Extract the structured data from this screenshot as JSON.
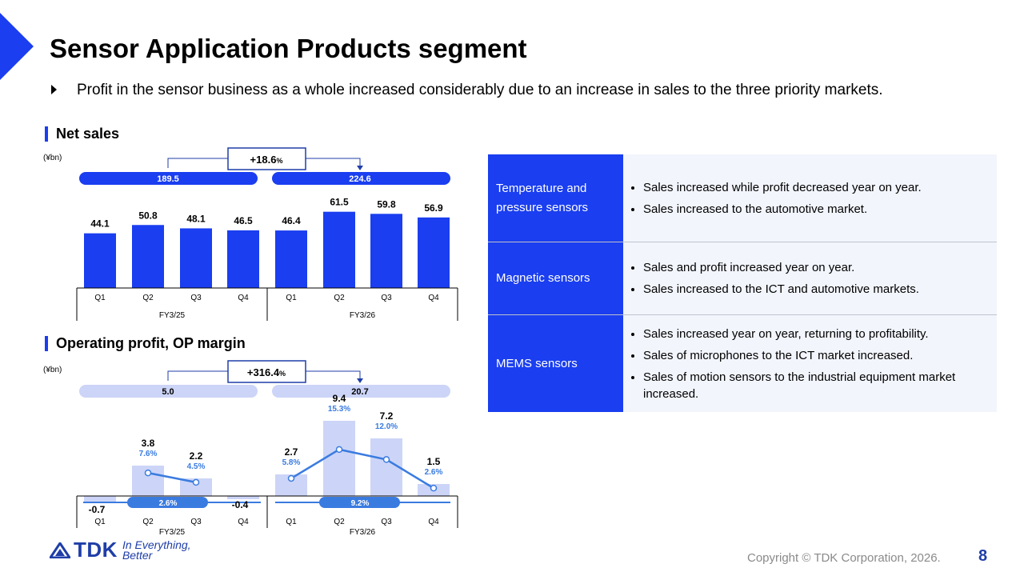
{
  "header": {
    "title": "Sensor Application Products segment",
    "summary": "Profit in the sensor business as a whole increased considerably due to an increase in sales to the three priority markets."
  },
  "net_sales": {
    "heading": "Net sales",
    "unit": "(¥bn)",
    "growth_value": "+18.6",
    "growth_unit": "%",
    "fy25_total": "189.5",
    "fy26_total": "224.6"
  },
  "op_profit": {
    "heading": "Operating profit, OP margin",
    "unit": "(¥bn)",
    "growth_value": "+316.4",
    "growth_unit": "%",
    "fy25_total": "5.0",
    "fy26_total": "20.7",
    "fy25_avg_margin": "2.6%",
    "fy26_avg_margin": "9.2%"
  },
  "chart_data": [
    {
      "type": "bar",
      "title": "Net sales",
      "unit": "(¥bn)",
      "categories": [
        "Q1",
        "Q2",
        "Q3",
        "Q4",
        "Q1",
        "Q2",
        "Q3",
        "Q4"
      ],
      "groups": [
        "FY3/25",
        "FY3/26"
      ],
      "values": [
        44.1,
        50.8,
        48.1,
        46.5,
        46.4,
        61.5,
        59.8,
        56.9
      ],
      "labels": [
        "44.1",
        "50.8",
        "48.1",
        "46.5",
        "46.4",
        "61.5",
        "59.8",
        "56.9"
      ],
      "ylim": [
        0,
        70
      ],
      "colors": {
        "bar": "#1a3ef0",
        "total": "#1a3ef0"
      }
    },
    {
      "type": "bar",
      "title": "Operating profit, OP margin",
      "unit": "(¥bn)",
      "categories": [
        "Q1",
        "Q2",
        "Q3",
        "Q4",
        "Q1",
        "Q2",
        "Q3",
        "Q4"
      ],
      "groups": [
        "FY3/25",
        "FY3/26"
      ],
      "values": [
        -0.7,
        3.8,
        2.2,
        -0.4,
        2.7,
        9.4,
        7.2,
        1.5
      ],
      "labels": [
        "-0.7",
        "3.8",
        "2.2",
        "-0.4",
        "2.7",
        "9.4",
        "7.2",
        "1.5"
      ],
      "margin_series": {
        "values": [
          null,
          7.6,
          4.5,
          null,
          5.8,
          15.3,
          12.0,
          2.6
        ],
        "labels": [
          "",
          "7.6%",
          "4.5%",
          "",
          "5.8%",
          "15.3%",
          "12.0%",
          "2.6%"
        ]
      },
      "ylim": [
        -1,
        10
      ],
      "colors": {
        "bar": "#ccd5f7",
        "line": "#3a7be0",
        "total": "#ccd5f7"
      }
    }
  ],
  "table": [
    {
      "category": "Temperature and pressure sensors",
      "points": [
        "Sales increased while profit decreased year on year.",
        "Sales increased to the automotive market."
      ]
    },
    {
      "category": "Magnetic sensors",
      "points": [
        "Sales and profit increased year on year.",
        "Sales increased to the ICT and automotive markets."
      ]
    },
    {
      "category": "MEMS sensors",
      "points": [
        "Sales increased year on year, returning to profitability.",
        "Sales of microphones to the ICT market increased.",
        "Sales of motion sensors to the industrial equipment market increased."
      ]
    }
  ],
  "footer": {
    "logo_text": "TDK",
    "tagline_1": "In Everything,",
    "tagline_2": "Better",
    "copyright": "Copyright © TDK Corporation, 2026.",
    "page_number": "8"
  }
}
